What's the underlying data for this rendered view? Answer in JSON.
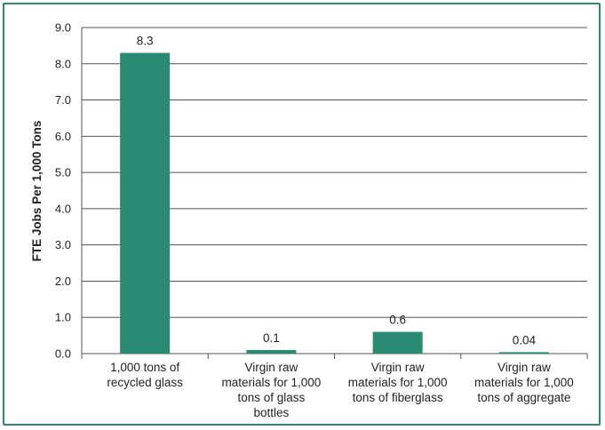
{
  "chart_data": {
    "type": "bar",
    "title": "",
    "xlabel": "",
    "ylabel": "FTE Jobs Per 1,000 Tons",
    "ylim": [
      0,
      9
    ],
    "yticks": [
      "0.0",
      "1.0",
      "2.0",
      "3.0",
      "4.0",
      "5.0",
      "6.0",
      "7.0",
      "8.0",
      "9.0"
    ],
    "categories": [
      [
        "1,000 tons of",
        "recycled glass"
      ],
      [
        "Virgin raw",
        "materials for 1,000",
        "tons of glass",
        "bottles"
      ],
      [
        "Virgin raw",
        "materials for 1,000",
        "tons of fiberglass"
      ],
      [
        "Virgin raw",
        "materials for 1,000",
        "tons of aggregate"
      ]
    ],
    "values": [
      8.3,
      0.1,
      0.6,
      0.04
    ],
    "data_labels": [
      "8.3",
      "0.1",
      "0.6",
      "0.04"
    ],
    "grid": true,
    "legend": "none",
    "colors": {
      "bar": "#2a8a72",
      "frame": "#2a8a72",
      "grid": "#555555",
      "text": "#222222"
    }
  }
}
